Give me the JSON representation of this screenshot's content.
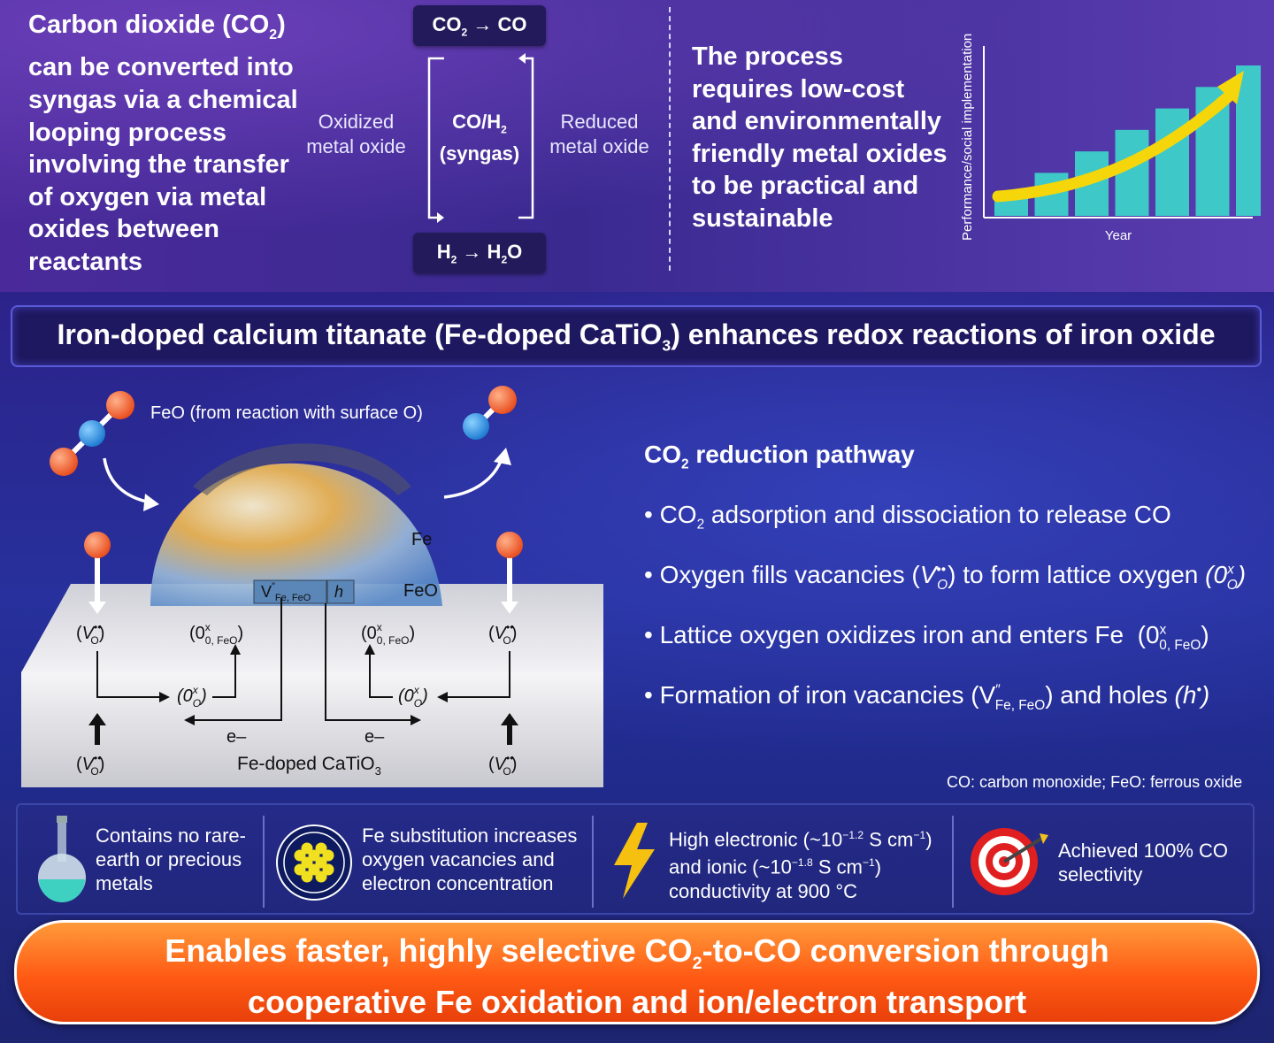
{
  "intro": {
    "lines": [
      "Carbon dioxide (CO2)",
      "can be converted into",
      "syngas via a chemical",
      "looping process",
      "involving the transfer",
      "of oxygen via metal",
      "oxides between",
      "reactants"
    ]
  },
  "cycle": {
    "top_box": "CO2 → CO",
    "center": [
      "CO/H2",
      "(syngas)"
    ],
    "left_label": [
      "Oxidized",
      "metal oxide"
    ],
    "right_label": [
      "Reduced",
      "metal oxide"
    ],
    "bottom_box": "H2 → H2O"
  },
  "requirement": {
    "lines": [
      "The process",
      "requires low-cost",
      "and environmentally",
      "friendly metal oxides",
      "to be practical and",
      "sustainable"
    ]
  },
  "mini_chart": {
    "ylabel": "Performance/social implementation",
    "xlabel": "Year",
    "bar_color": "#3ec8c8",
    "arrow_color": "#f5d60a"
  },
  "chart_data": {
    "type": "bar",
    "xlabel": "Year",
    "ylabel": "Performance/social implementation",
    "categories": [
      "",
      "",
      "",
      "",
      "",
      "",
      ""
    ],
    "values": [
      1,
      2,
      3,
      4,
      5,
      6,
      7
    ]
  },
  "banner": {
    "title": "Iron-doped calcium titanate (Fe-doped CaTiO3) enhances redox reactions of iron oxide"
  },
  "schematic": {
    "feo_label": "FeO (from reaction with surface O)",
    "fe": "Fe",
    "feo": "FeO",
    "vfe": "V″Fe, FeO",
    "h": "h",
    "vo": "(V••O)",
    "ox_feo": "(0xO, FeO)",
    "ox": "(0xO)",
    "electron": "e–",
    "material": "Fe-doped CaTiO3"
  },
  "pathway": {
    "title": "CO2 reduction pathway",
    "items": [
      "CO2 adsorption and dissociation to release CO",
      "Oxygen fills vacancies (V••O) to form lattice oxygen (0xO)",
      "Lattice oxygen oxidizes iron and enters Fe (0xO, FeO)",
      "Formation of iron vacancies (V″Fe, FeO) and holes (h•)"
    ],
    "abbreviations": "CO: carbon monoxide; FeO: ferrous oxide"
  },
  "features": [
    {
      "icon": "flask-icon",
      "text": [
        "Contains no rare-",
        "earth or precious",
        "metals"
      ]
    },
    {
      "icon": "atom-icon",
      "text": [
        "Fe substitution increases",
        "oxygen vacancies and",
        "electron concentration"
      ]
    },
    {
      "icon": "lightning-icon",
      "text": [
        "High electronic (~10−1.2 S cm−1)",
        "and ionic (~10−1.8 S cm−1)",
        "conductivity at 900 °C"
      ]
    },
    {
      "icon": "target-icon",
      "text": [
        "Achieved 100% CO",
        "selectivity"
      ]
    }
  ],
  "cta": {
    "lines": [
      "Enables faster, highly selective CO2-to-CO conversion through",
      "cooperative Fe oxidation and ion/electron transport"
    ]
  },
  "colors": {
    "oxygen": "#f05a28",
    "carbon": "#2a8ee0",
    "cta": "#ff6a1a"
  }
}
